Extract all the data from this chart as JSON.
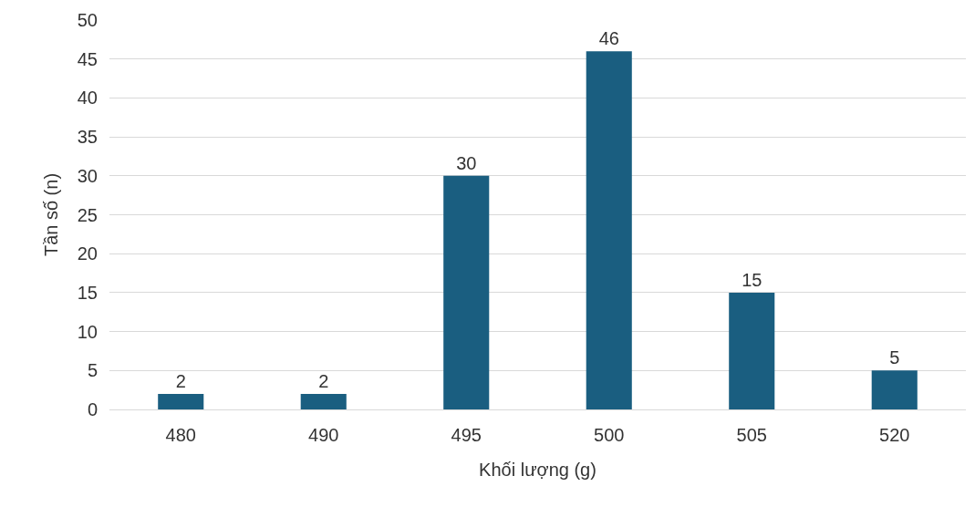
{
  "chart_data": {
    "type": "bar",
    "xlabel": "Khối lượng (g)",
    "ylabel": "Tần số (n)",
    "categories": [
      "480",
      "490",
      "495",
      "500",
      "505",
      "520"
    ],
    "values": [
      2,
      2,
      30,
      46,
      15,
      5
    ],
    "color": "#1a5e80",
    "ylim": [
      0,
      50
    ],
    "yticks": [
      0,
      5,
      10,
      15,
      20,
      25,
      30,
      35,
      40,
      45,
      50
    ],
    "grid": "y",
    "data_labels": true
  }
}
